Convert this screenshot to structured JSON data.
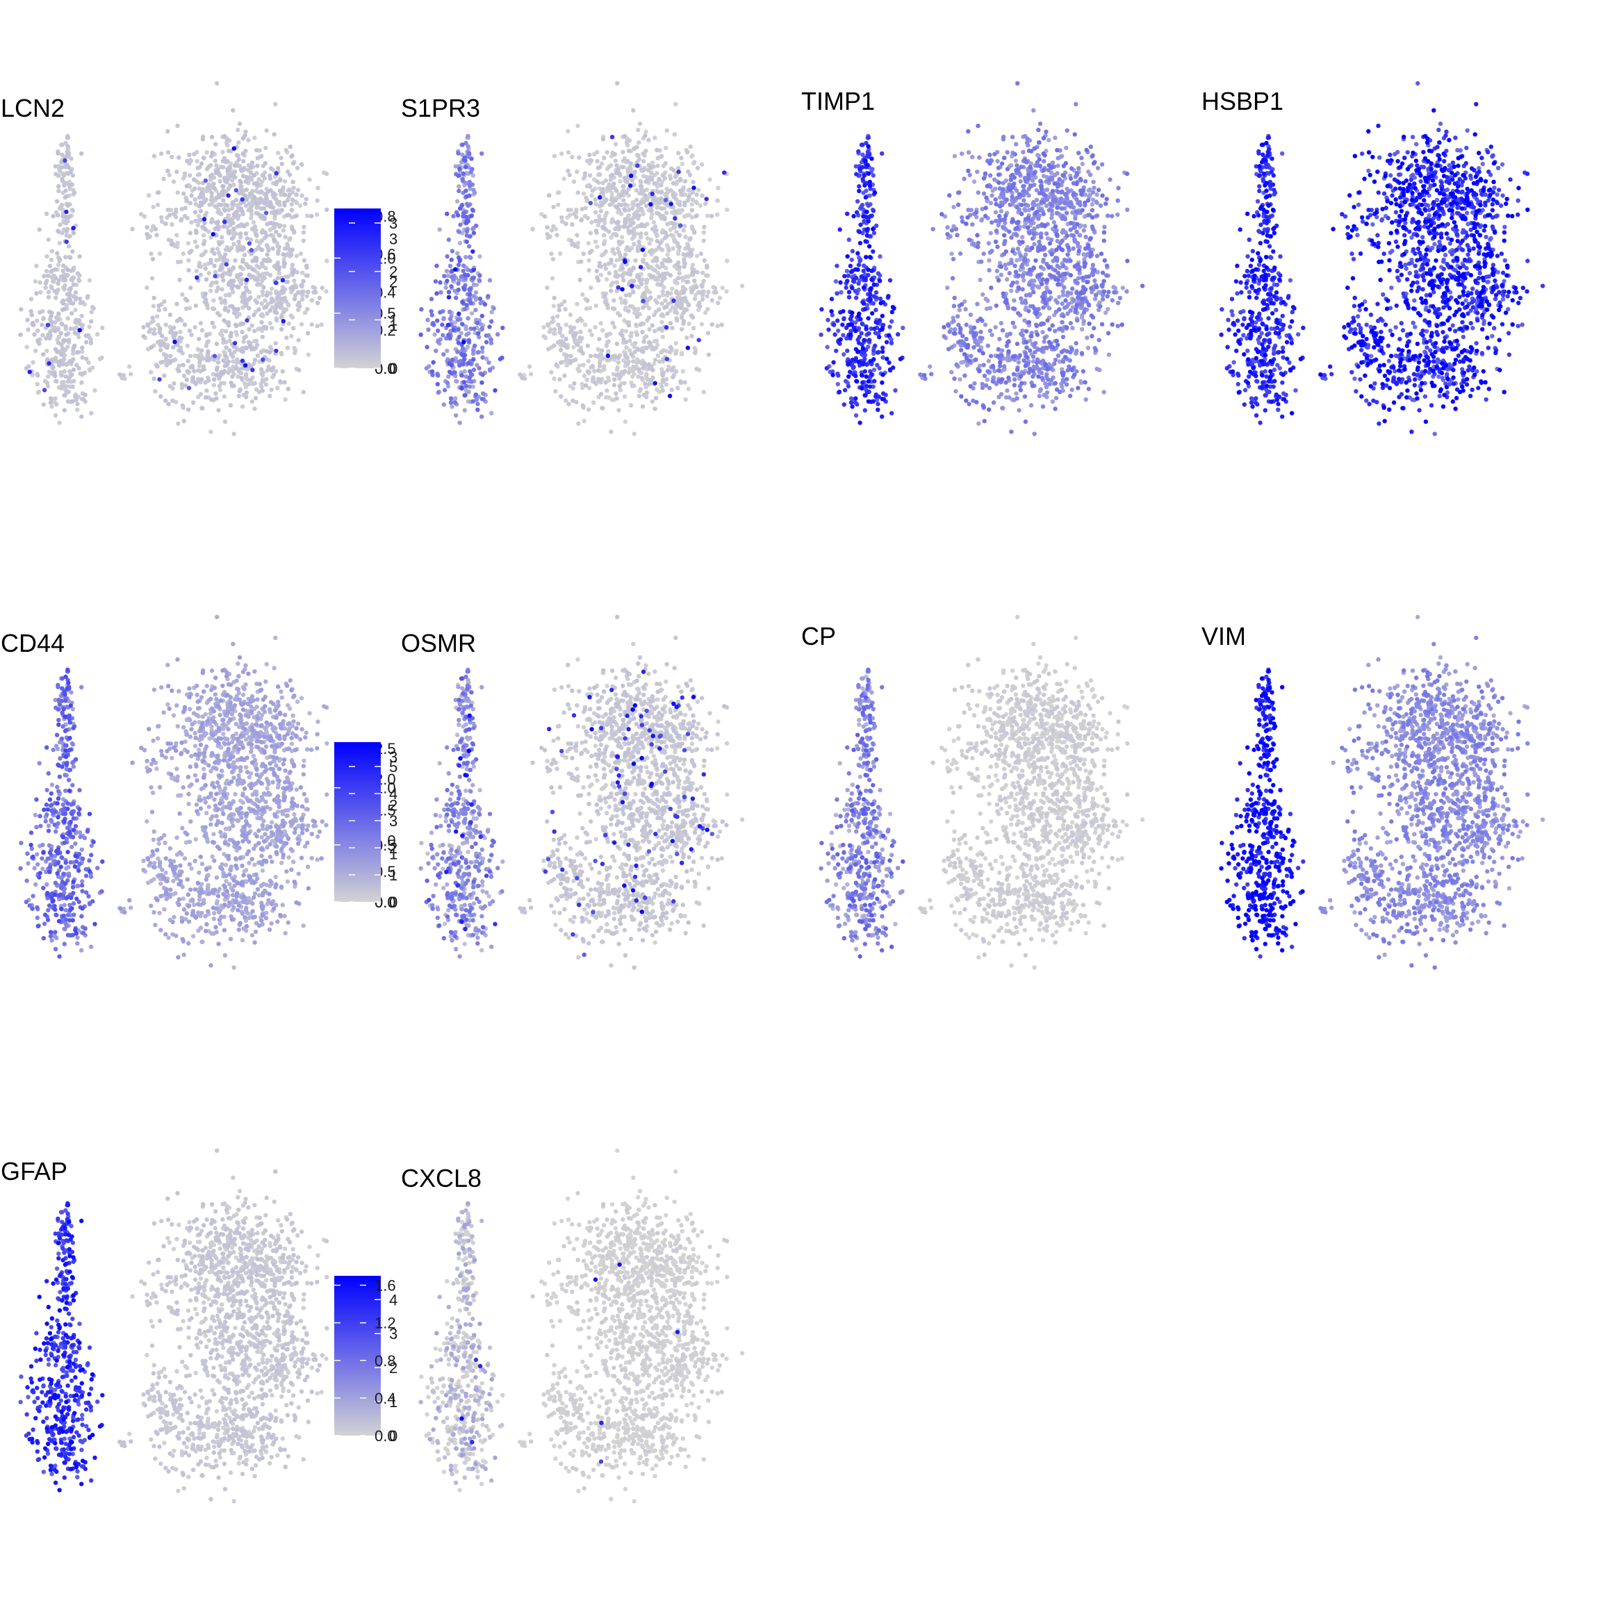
{
  "chart_data": [
    {
      "type": "scatter",
      "title": "LCN2",
      "legend": {
        "ticks": [
          "0.0",
          "0.2",
          "0.4",
          "0.6",
          "0.8"
        ],
        "values": [
          0,
          0.2,
          0.4,
          0.6,
          0.8
        ],
        "range": [
          0,
          0.84
        ]
      },
      "expression": {
        "overall": 0.06,
        "sparse_hot": 0.02
      }
    },
    {
      "type": "scatter",
      "title": "S1PR3",
      "legend": {
        "ticks": [
          "0.0",
          "0.5",
          "1.0"
        ],
        "values": [
          0,
          0.5,
          1.0
        ],
        "range": [
          0,
          1.45
        ]
      },
      "expression": {
        "overall": 0.04,
        "left_cluster": 0.35,
        "sparse_hot": 0.02
      }
    },
    {
      "type": "scatter",
      "title": "TIMP1",
      "legend": {
        "ticks": [
          "0",
          "1",
          "2",
          "3"
        ],
        "values": [
          0,
          1,
          2,
          3
        ],
        "range": [
          0,
          3.7
        ]
      },
      "expression": {
        "overall": 0.35,
        "left_cluster": 0.75
      }
    },
    {
      "type": "scatter",
      "title": "HSBP1",
      "legend": {
        "ticks": [
          "0",
          "1",
          "2",
          "3"
        ],
        "values": [
          0,
          1,
          2,
          3
        ],
        "range": [
          0,
          3.3
        ]
      },
      "expression": {
        "overall": 0.8,
        "left_cluster": 0.78
      }
    },
    {
      "type": "scatter",
      "title": "CD44",
      "legend": {
        "ticks": [
          "0.0",
          "0.5",
          "1.0",
          "1.5",
          "2.0",
          "2.5"
        ],
        "values": [
          0,
          0.5,
          1.0,
          1.5,
          2.0,
          2.5
        ],
        "range": [
          0,
          2.6
        ]
      },
      "expression": {
        "overall": 0.2,
        "left_cluster": 0.45
      }
    },
    {
      "type": "scatter",
      "title": "OSMR",
      "legend": {
        "ticks": [
          "0.0",
          "0.5",
          "1.0"
        ],
        "values": [
          0,
          0.5,
          1.0
        ],
        "range": [
          0,
          1.4
        ]
      },
      "expression": {
        "overall": 0.05,
        "left_cluster": 0.3,
        "sparse_hot": 0.05
      }
    },
    {
      "type": "scatter",
      "title": "CP",
      "legend": {
        "ticks": [
          "0",
          "1",
          "2",
          "3"
        ],
        "values": [
          0,
          1,
          2,
          3
        ],
        "range": [
          0,
          3.3
        ]
      },
      "expression": {
        "overall": 0.02,
        "left_cluster": 0.35
      }
    },
    {
      "type": "scatter",
      "title": "VIM",
      "legend": {
        "ticks": [
          "0",
          "1",
          "2",
          "3",
          "4",
          "5"
        ],
        "values": [
          0,
          1,
          2,
          3,
          4,
          5
        ],
        "range": [
          0,
          5.9
        ]
      },
      "expression": {
        "overall": 0.32,
        "left_cluster": 0.9
      }
    },
    {
      "type": "scatter",
      "title": "GFAP",
      "legend": {
        "ticks": [
          "0",
          "1",
          "2",
          "3",
          "4"
        ],
        "values": [
          0,
          1,
          2,
          3,
          4
        ],
        "range": [
          0,
          4.7
        ]
      },
      "expression": {
        "overall": 0.05,
        "left_cluster": 0.75
      }
    },
    {
      "type": "scatter",
      "title": "CXCL8",
      "legend": {
        "ticks": [
          "0.0",
          "0.4",
          "0.8",
          "1.2",
          "1.6"
        ],
        "values": [
          0,
          0.4,
          0.8,
          1.2,
          1.6
        ],
        "range": [
          0,
          1.7
        ]
      },
      "expression": {
        "overall": 0.0,
        "left_cluster": 0.02,
        "sparse_hot": 0.005
      }
    }
  ],
  "colors": {
    "low": "#d3d3d3",
    "high": "#0000ff",
    "background": "#ffffff"
  }
}
